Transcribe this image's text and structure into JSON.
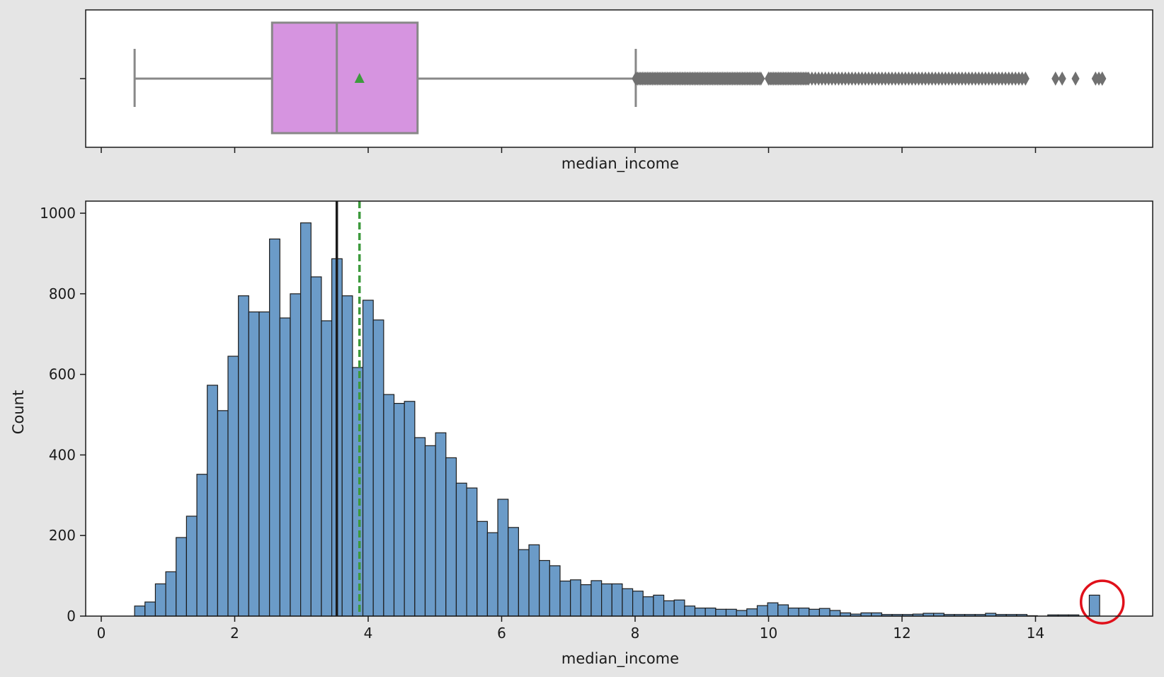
{
  "chart_data": [
    {
      "type": "box",
      "xlabel": "median_income",
      "ylabel": "",
      "xlim": [
        -0.2,
        15.6
      ],
      "x_ticks": [
        0,
        2,
        4,
        6,
        8,
        10,
        12,
        14
      ],
      "x_ticklabels_shown": false,
      "stats": {
        "whisker_low": 0.5,
        "q1": 2.56,
        "median": 3.53,
        "mean": 3.87,
        "q3": 4.74,
        "whisker_high": 8.01,
        "outliers_max": 15.0
      },
      "outlier_dense_ranges": [
        [
          8.01,
          9.9
        ],
        [
          10.0,
          10.6
        ],
        [
          10.6,
          12.0
        ],
        [
          12.0,
          13.0
        ],
        [
          13.0,
          13.9
        ]
      ],
      "outlier_points": [
        14.3,
        14.4,
        14.6,
        14.9,
        14.95,
        15.0,
        15.0
      ],
      "box_color": "#d694e0",
      "box_edge_color": "#888888",
      "mean_marker_color": "#3d9a3d"
    },
    {
      "type": "histogram",
      "xlabel": "median_income",
      "ylabel": "Count",
      "xlim": [
        -0.2,
        15.6
      ],
      "ylim": [
        0,
        1030
      ],
      "x_ticks": [
        0,
        2,
        4,
        6,
        8,
        10,
        12,
        14
      ],
      "y_ticks": [
        0,
        200,
        400,
        600,
        800,
        1000
      ],
      "bin_start": 0.4999,
      "bin_width": 0.1555,
      "values": [
        25,
        35,
        80,
        110,
        195,
        248,
        352,
        573,
        510,
        645,
        795,
        755,
        755,
        936,
        740,
        800,
        976,
        842,
        733,
        887,
        795,
        617,
        784,
        735,
        550,
        528,
        533,
        443,
        423,
        455,
        393,
        330,
        318,
        235,
        207,
        290,
        220,
        165,
        177,
        138,
        125,
        87,
        90,
        78,
        88,
        80,
        80,
        68,
        62,
        48,
        52,
        38,
        40,
        25,
        20,
        20,
        17,
        17,
        14,
        18,
        26,
        33,
        28,
        20,
        20,
        17,
        19,
        14,
        8,
        5,
        8,
        8,
        4,
        4,
        4,
        5,
        7,
        7,
        4,
        4,
        4,
        4,
        7,
        4,
        4,
        4,
        1,
        0,
        3,
        3,
        3,
        0,
        52
      ],
      "bar_color": "#6b9bc8",
      "bar_edge_color": "#1c1c1c",
      "median_line": 3.53,
      "median_line_color": "#1a1a1a",
      "mean_line": 3.87,
      "mean_line_color": "#3d9a3d",
      "annotation": {
        "type": "circle",
        "x": 15.0,
        "y": 35,
        "color": "#e0101a"
      }
    }
  ]
}
